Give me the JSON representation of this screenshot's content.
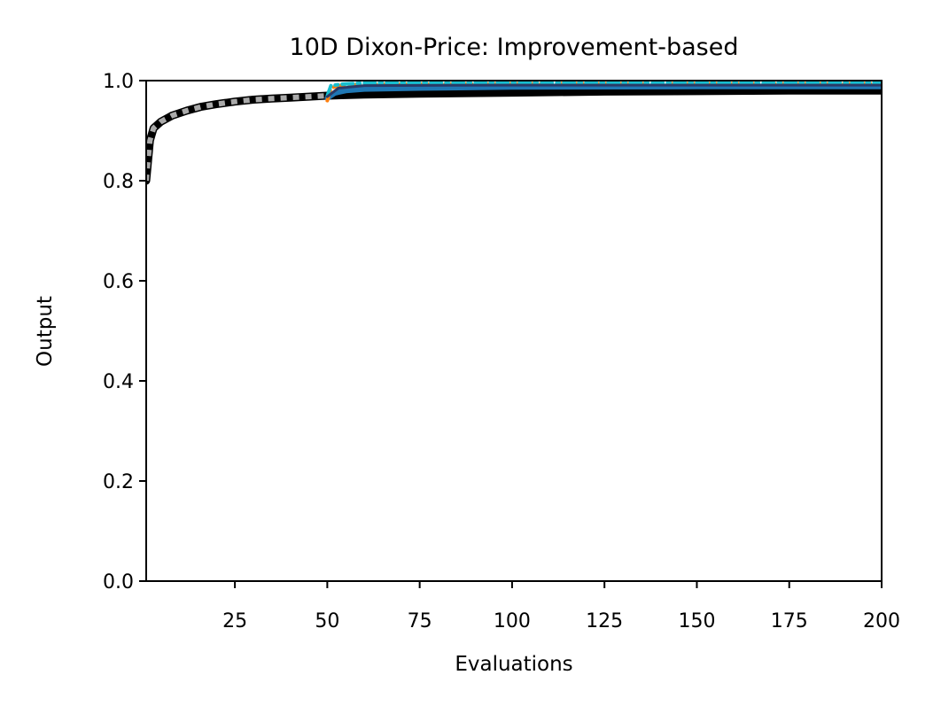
{
  "chart_data": {
    "type": "line",
    "title": "10D Dixon-Price: Improvement-based",
    "xlabel": "Evaluations",
    "ylabel": "Output",
    "xlim": [
      1,
      200
    ],
    "ylim": [
      0,
      1
    ],
    "x_ticks": [
      25,
      50,
      75,
      100,
      125,
      150,
      175,
      200
    ],
    "y_ticks": [
      0.0,
      0.2,
      0.4,
      0.6,
      0.8,
      1.0
    ],
    "x_tick_labels": [
      "25",
      "50",
      "75",
      "100",
      "125",
      "150",
      "175",
      "200"
    ],
    "y_tick_labels": [
      "0.0",
      "0.2",
      "0.4",
      "0.6",
      "0.8",
      "1.0"
    ],
    "grid": false,
    "legend": false,
    "series": [
      {
        "color": "#000000",
        "style": "solid",
        "width": 9,
        "points": [
          [
            1,
            0.8
          ],
          [
            2,
            0.88
          ],
          [
            3,
            0.905
          ],
          [
            5,
            0.918
          ],
          [
            8,
            0.93
          ],
          [
            12,
            0.94
          ],
          [
            16,
            0.948
          ],
          [
            20,
            0.953
          ],
          [
            25,
            0.958
          ],
          [
            30,
            0.962
          ],
          [
            35,
            0.964
          ],
          [
            40,
            0.966
          ],
          [
            45,
            0.968
          ],
          [
            50,
            0.97
          ],
          [
            60,
            0.972
          ],
          [
            75,
            0.974
          ],
          [
            100,
            0.976
          ],
          [
            125,
            0.978
          ],
          [
            150,
            0.979
          ],
          [
            175,
            0.98
          ],
          [
            200,
            0.98
          ]
        ]
      },
      {
        "color": "#aaaaaa",
        "style": "dotted",
        "width": 6,
        "points": [
          [
            1,
            0.8
          ],
          [
            2,
            0.88
          ],
          [
            3,
            0.905
          ],
          [
            5,
            0.918
          ],
          [
            8,
            0.93
          ],
          [
            12,
            0.94
          ],
          [
            16,
            0.948
          ],
          [
            20,
            0.953
          ],
          [
            25,
            0.958
          ],
          [
            30,
            0.962
          ],
          [
            35,
            0.964
          ],
          [
            40,
            0.966
          ],
          [
            45,
            0.968
          ],
          [
            50,
            0.97
          ]
        ]
      },
      {
        "color": "#1f77b4",
        "style": "solid",
        "width": 6,
        "points": [
          [
            50,
            0.965
          ],
          [
            52,
            0.975
          ],
          [
            55,
            0.98
          ],
          [
            60,
            0.983
          ],
          [
            75,
            0.985
          ],
          [
            100,
            0.987
          ],
          [
            150,
            0.988
          ],
          [
            200,
            0.988
          ]
        ]
      },
      {
        "color": "#ff7f0e",
        "style": "dashed",
        "width": 4,
        "points": [
          [
            50,
            0.96
          ],
          [
            51,
            0.985
          ],
          [
            53,
            0.99
          ],
          [
            60,
            0.993
          ],
          [
            100,
            0.994
          ],
          [
            150,
            0.994
          ],
          [
            200,
            0.994
          ]
        ]
      },
      {
        "color": "#17becf",
        "style": "dashdot",
        "width": 4,
        "points": [
          [
            50,
            0.97
          ],
          [
            51,
            0.99
          ],
          [
            54,
            0.993
          ],
          [
            60,
            0.995
          ],
          [
            100,
            0.995
          ],
          [
            150,
            0.995
          ],
          [
            200,
            0.995
          ]
        ]
      },
      {
        "color": "#2b3a67",
        "style": "solid",
        "width": 3,
        "points": [
          [
            50,
            0.968
          ],
          [
            53,
            0.985
          ],
          [
            60,
            0.99
          ],
          [
            100,
            0.991
          ],
          [
            200,
            0.991
          ]
        ]
      }
    ]
  }
}
